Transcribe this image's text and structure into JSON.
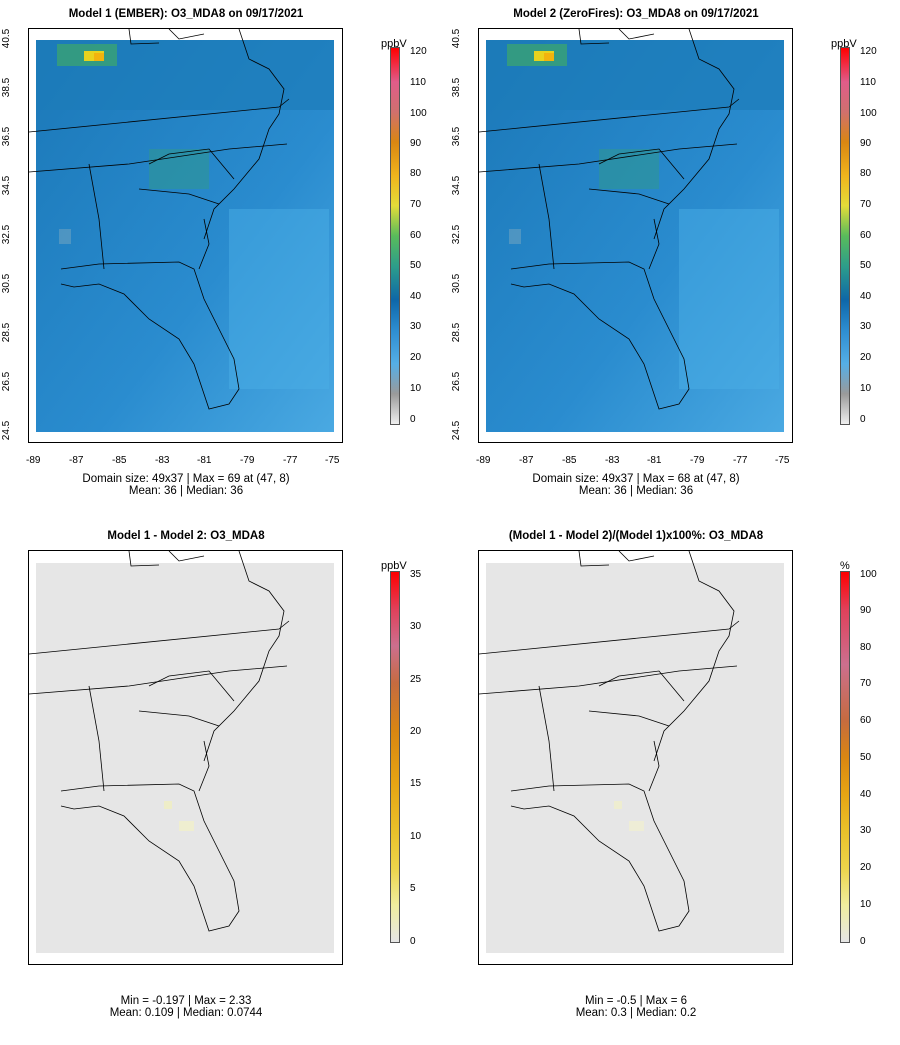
{
  "panels": [
    {
      "title": "Model 1 (EMBER): O3_MDA8 on 09/17/2021",
      "caption_line1": "Domain size: 49x37 | Max = 69 at (47, 8)",
      "caption_line2": "Mean: 36 |  Median: 36",
      "unit": "ppbV",
      "colorbar_ticks": [
        "0",
        "10",
        "20",
        "30",
        "40",
        "50",
        "60",
        "70",
        "80",
        "90",
        "100",
        "110",
        "120"
      ],
      "y_ticks": [
        "40.5",
        "38.5",
        "36.5",
        "34.5",
        "32.5",
        "30.5",
        "28.5",
        "26.5",
        "24.5"
      ],
      "x_ticks": [
        "-89",
        "-87",
        "-85",
        "-83",
        "-81",
        "-79",
        "-77",
        "-75"
      ]
    },
    {
      "title": "Model 2 (ZeroFires): O3_MDA8 on 09/17/2021",
      "caption_line1": "Domain size: 49x37 | Max = 68 at (47, 8)",
      "caption_line2": "Mean: 36 |  Median: 36",
      "unit": "ppbV",
      "colorbar_ticks": [
        "0",
        "10",
        "20",
        "30",
        "40",
        "50",
        "60",
        "70",
        "80",
        "90",
        "100",
        "110",
        "120"
      ],
      "y_ticks": [
        "40.5",
        "38.5",
        "36.5",
        "34.5",
        "32.5",
        "30.5",
        "28.5",
        "26.5",
        "24.5"
      ],
      "x_ticks": [
        "-89",
        "-87",
        "-85",
        "-83",
        "-81",
        "-79",
        "-77",
        "-75"
      ]
    },
    {
      "title": "Model 1 - Model 2: O3_MDA8",
      "caption_line1": "Min = -0.197 | Max = 2.33",
      "caption_line2": "Mean: 0.109 |  Median: 0.0744",
      "unit": "ppbV",
      "colorbar_ticks": [
        "0",
        "5",
        "10",
        "15",
        "20",
        "25",
        "30",
        "35"
      ]
    },
    {
      "title": "(Model 1 - Model 2)/(Model 1)x100%: O3_MDA8",
      "caption_line1": "Min = -0.5 | Max = 6",
      "caption_line2": "Mean: 0.3 |  Median: 0.2",
      "unit": "%",
      "colorbar_ticks": [
        "0",
        "10",
        "20",
        "30",
        "40",
        "50",
        "60",
        "70",
        "80",
        "90",
        "100"
      ]
    }
  ],
  "colors": {
    "ocean_field": "#2b8fd0",
    "land_field": "#1f7bbd",
    "hotspot_yellow": "#e8d21d",
    "hotspot_green": "#4aa86a",
    "diff_background": "#e6e6e6",
    "boundary_line": "#000000"
  }
}
